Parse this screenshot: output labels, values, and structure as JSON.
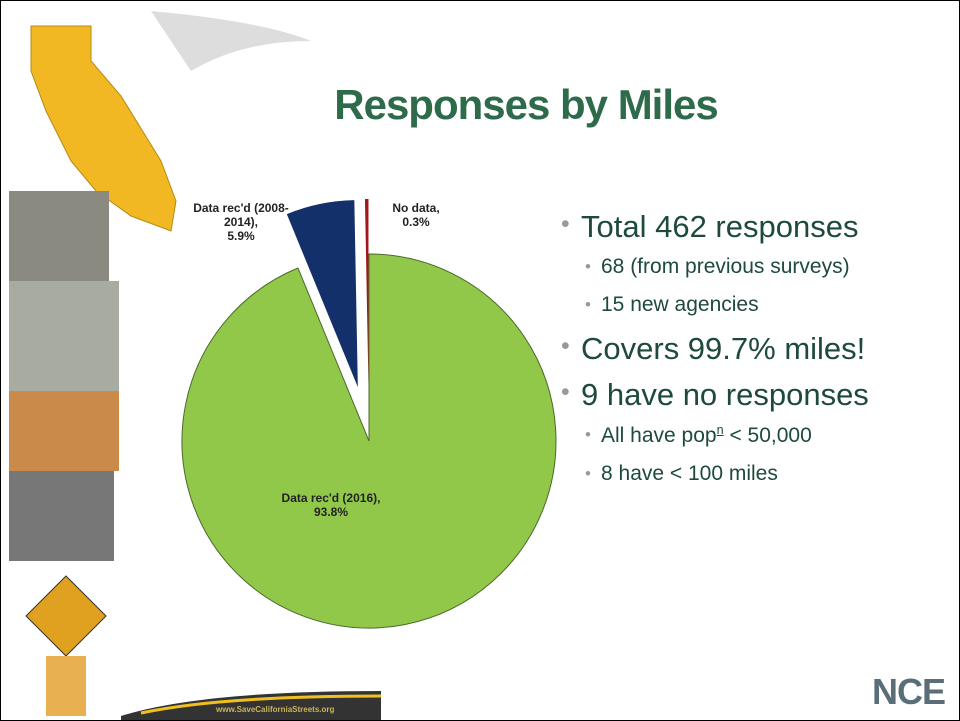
{
  "chart_data": {
    "type": "pie",
    "title": "Responses by Miles",
    "categories": [
      "Data rec'd (2016),",
      "Data rec'd (2008-2014),",
      "No data,"
    ],
    "values": [
      93.8,
      5.9,
      0.3
    ],
    "value_labels": [
      "93.8%",
      "5.9%",
      "0.3%"
    ],
    "colors": [
      "#92c84a",
      "#14306a",
      "#a01818"
    ]
  },
  "bullets": [
    {
      "text": "Total 462 responses",
      "sub": [
        {
          "text": "68 (from previous surveys)"
        },
        {
          "text": "15 new agencies"
        }
      ]
    },
    {
      "text": "Covers 99.7% miles!",
      "sub": []
    },
    {
      "text": "9 have no responses",
      "sub": [
        {
          "before": "All have pop",
          "sup": "n",
          "after": "< 50,000"
        },
        {
          "text": "8 have < 100 miles"
        }
      ]
    }
  ],
  "footer": {
    "url": "www.SaveCaliforniaStreets.org",
    "logo": "NCE"
  }
}
